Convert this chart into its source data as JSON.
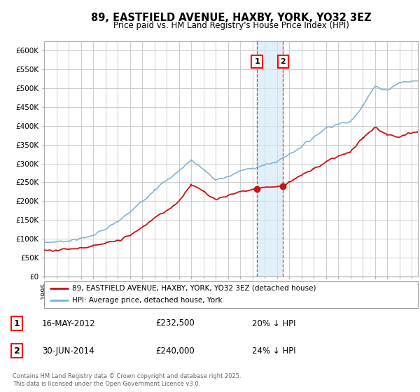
{
  "title": "89, EASTFIELD AVENUE, HAXBY, YORK, YO32 3EZ",
  "subtitle": "Price paid vs. HM Land Registry's House Price Index (HPI)",
  "background_color": "#ffffff",
  "grid_color": "#cccccc",
  "hpi_color": "#7bafd4",
  "price_color": "#cc1111",
  "ylim": [
    0,
    625000
  ],
  "yticks": [
    0,
    50000,
    100000,
    150000,
    200000,
    250000,
    300000,
    350000,
    400000,
    450000,
    500000,
    550000,
    600000
  ],
  "ytick_labels": [
    "£0",
    "£50K",
    "£100K",
    "£150K",
    "£200K",
    "£250K",
    "£300K",
    "£350K",
    "£400K",
    "£450K",
    "£500K",
    "£550K",
    "£600K"
  ],
  "sale1_date": 2012.37,
  "sale1_price": 232500,
  "sale1_label": "1",
  "sale1_text": "16-MAY-2012",
  "sale1_amount": "£232,500",
  "sale1_hpi": "20% ↓ HPI",
  "sale2_date": 2014.5,
  "sale2_price": 240000,
  "sale2_label": "2",
  "sale2_text": "30-JUN-2014",
  "sale2_amount": "£240,000",
  "sale2_hpi": "24% ↓ HPI",
  "legend_line1": "89, EASTFIELD AVENUE, HAXBY, YORK, YO32 3EZ (detached house)",
  "legend_line2": "HPI: Average price, detached house, York",
  "footer": "Contains HM Land Registry data © Crown copyright and database right 2025.\nThis data is licensed under the Open Government Licence v3.0.",
  "xmin": 1995,
  "xmax": 2025.5
}
